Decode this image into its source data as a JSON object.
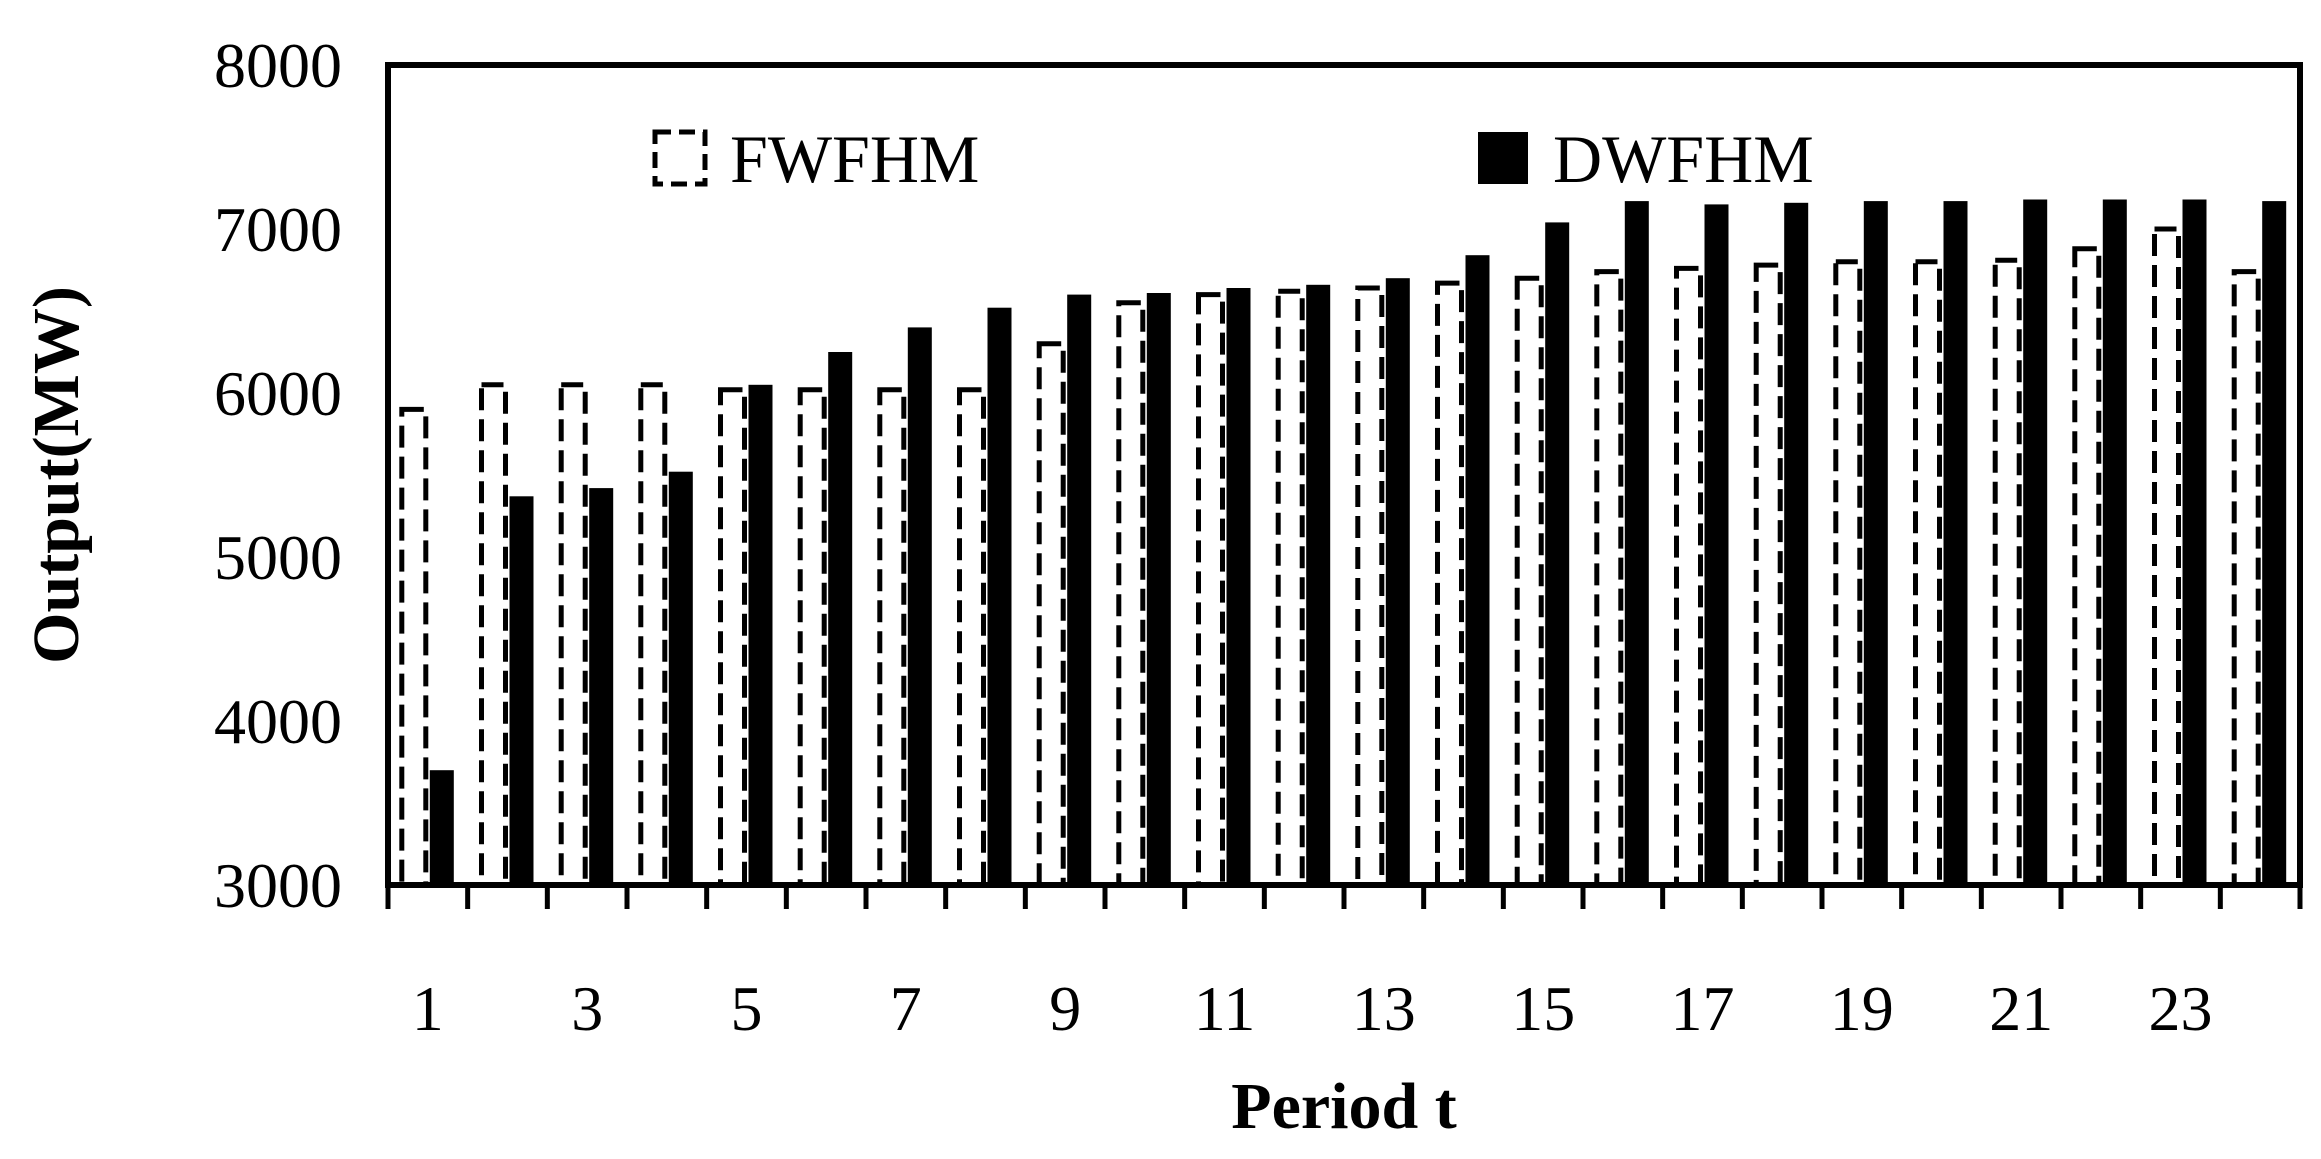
{
  "chart_data": {
    "type": "bar",
    "title": "",
    "xlabel": "Period t",
    "ylabel": "Output(MW)",
    "ylim": [
      3000,
      8000
    ],
    "yticks": [
      "3000",
      "4000",
      "5000",
      "6000",
      "7000",
      "8000"
    ],
    "categories": [
      "1",
      "2",
      "3",
      "4",
      "5",
      "6",
      "7",
      "8",
      "9",
      "10",
      "11",
      "12",
      "13",
      "14",
      "15",
      "16",
      "17",
      "18",
      "19",
      "20",
      "21",
      "22",
      "23",
      "24"
    ],
    "xtick_labels": [
      "1",
      "",
      "3",
      "",
      "5",
      "",
      "7",
      "",
      "9",
      "",
      "11",
      "",
      "13",
      "",
      "15",
      "",
      "17",
      "",
      "19",
      "",
      "21",
      "",
      "23",
      ""
    ],
    "grid": false,
    "legend_position": "top",
    "series": [
      {
        "name": "FWFHM",
        "style": "dashed-outline",
        "color": "#000000",
        "values": [
          5900,
          6050,
          6050,
          6050,
          6020,
          6020,
          6020,
          6020,
          6300,
          6550,
          6600,
          6620,
          6640,
          6670,
          6700,
          6740,
          6760,
          6780,
          6800,
          6800,
          6810,
          6880,
          7000,
          6740
        ]
      },
      {
        "name": "DWFHM",
        "style": "solid",
        "color": "#000000",
        "values": [
          3700,
          5370,
          5420,
          5520,
          6050,
          6250,
          6400,
          6520,
          6600,
          6610,
          6640,
          6660,
          6700,
          6840,
          7040,
          7170,
          7150,
          7160,
          7170,
          7170,
          7180,
          7180,
          7180,
          7170
        ]
      }
    ]
  }
}
